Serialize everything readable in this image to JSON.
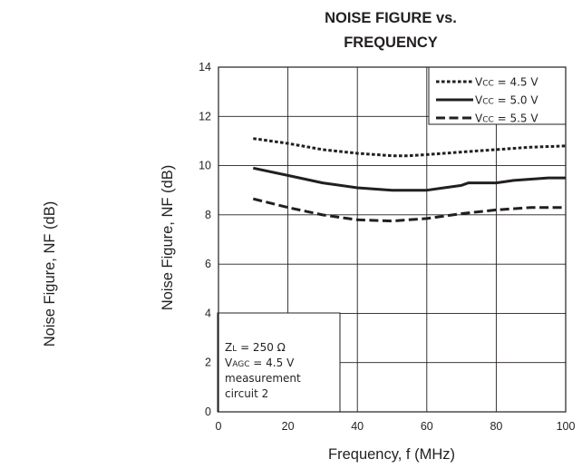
{
  "chart_data": {
    "type": "line",
    "title_line1": "NOISE FIGURE vs.",
    "title_line2": "FREQUENCY",
    "xlabel": "Frequency, f (MHz)",
    "ylabel": "Noise Figure, NF (dB)",
    "outside_ylabel": "Noise Figure, NF (dB)",
    "xlim": [
      0,
      100
    ],
    "ylim": [
      0,
      14
    ],
    "x_ticks": [
      "0",
      "20",
      "40",
      "60",
      "80",
      "100"
    ],
    "y_ticks": [
      "0",
      "2",
      "4",
      "6",
      "8",
      "10",
      "12",
      "14"
    ],
    "grid": true,
    "legend_position": "top-right",
    "series": [
      {
        "name": "Vcc = 4.5 V",
        "legend_main": "V",
        "legend_sub": "CC",
        "legend_value": " = 4.5 V",
        "style": "dotted",
        "x": [
          10,
          20,
          30,
          40,
          50,
          55,
          60,
          70,
          80,
          90,
          100
        ],
        "y": [
          11.1,
          10.9,
          10.65,
          10.5,
          10.4,
          10.4,
          10.45,
          10.55,
          10.65,
          10.75,
          10.8
        ]
      },
      {
        "name": "Vcc = 5.0 V",
        "legend_main": "V",
        "legend_sub": "CC",
        "legend_value": " = 5.0 V",
        "style": "solid",
        "x": [
          10,
          20,
          30,
          40,
          50,
          60,
          65,
          70,
          72,
          75,
          80,
          85,
          90,
          95,
          100
        ],
        "y": [
          9.9,
          9.6,
          9.3,
          9.1,
          9.0,
          9.0,
          9.1,
          9.2,
          9.3,
          9.3,
          9.3,
          9.4,
          9.45,
          9.5,
          9.5
        ]
      },
      {
        "name": "Vcc = 5.5 V",
        "legend_main": "V",
        "legend_sub": "CC",
        "legend_value": " = 5.5 V",
        "style": "dashed",
        "x": [
          10,
          20,
          30,
          40,
          50,
          60,
          70,
          80,
          90,
          100
        ],
        "y": [
          8.65,
          8.3,
          8.0,
          7.8,
          7.75,
          7.85,
          8.05,
          8.2,
          8.3,
          8.3
        ]
      }
    ],
    "annotation": {
      "zl_main": "Z",
      "zl_sub": "L",
      "zl_value": " = 250 Ω",
      "vagc_main": "V",
      "vagc_sub": "AGC",
      "vagc_value": "  = 4.5 V",
      "line3": "measurement",
      "line4": "circuit 2"
    }
  }
}
